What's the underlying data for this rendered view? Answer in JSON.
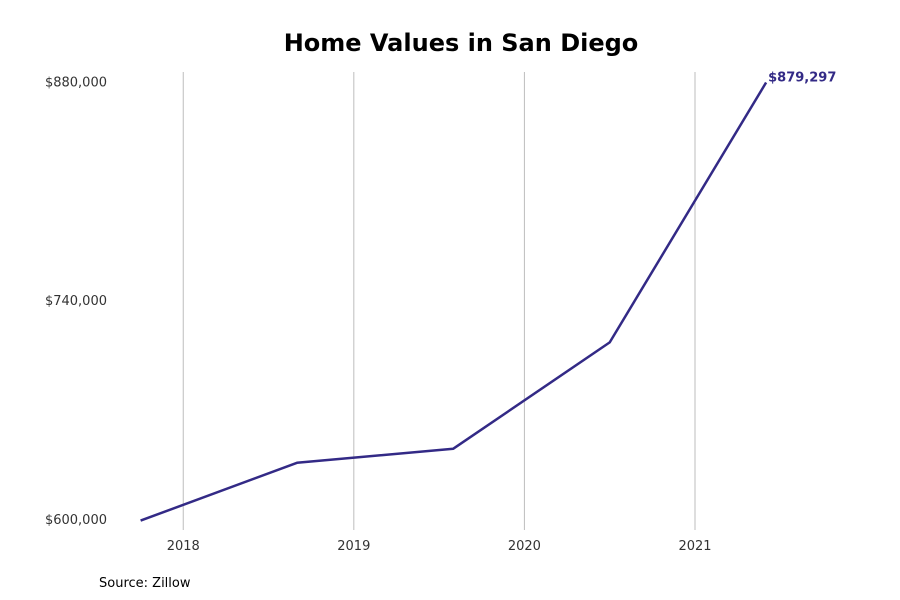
{
  "chart_data": {
    "type": "line",
    "title": "Home Values in San Diego",
    "xlabel": "",
    "ylabel": "",
    "source": "Source: Zillow",
    "x_ticks": [
      2018,
      2019,
      2020,
      2021
    ],
    "y_ticks": [
      600000,
      740000,
      880000
    ],
    "y_tick_labels": [
      "$600,000",
      "$740,000",
      "$880,000"
    ],
    "xlim": [
      2017.6,
      2021.85
    ],
    "ylim": [
      593000,
      886000
    ],
    "grid": "vertical",
    "series": [
      {
        "color": "#332a86",
        "x": [
          2017.75,
          2018.667,
          2019.583,
          2020.5,
          2021.417
        ],
        "y": [
          599000,
          636000,
          645000,
          713000,
          879297
        ]
      }
    ],
    "end_label": "$879,297"
  }
}
